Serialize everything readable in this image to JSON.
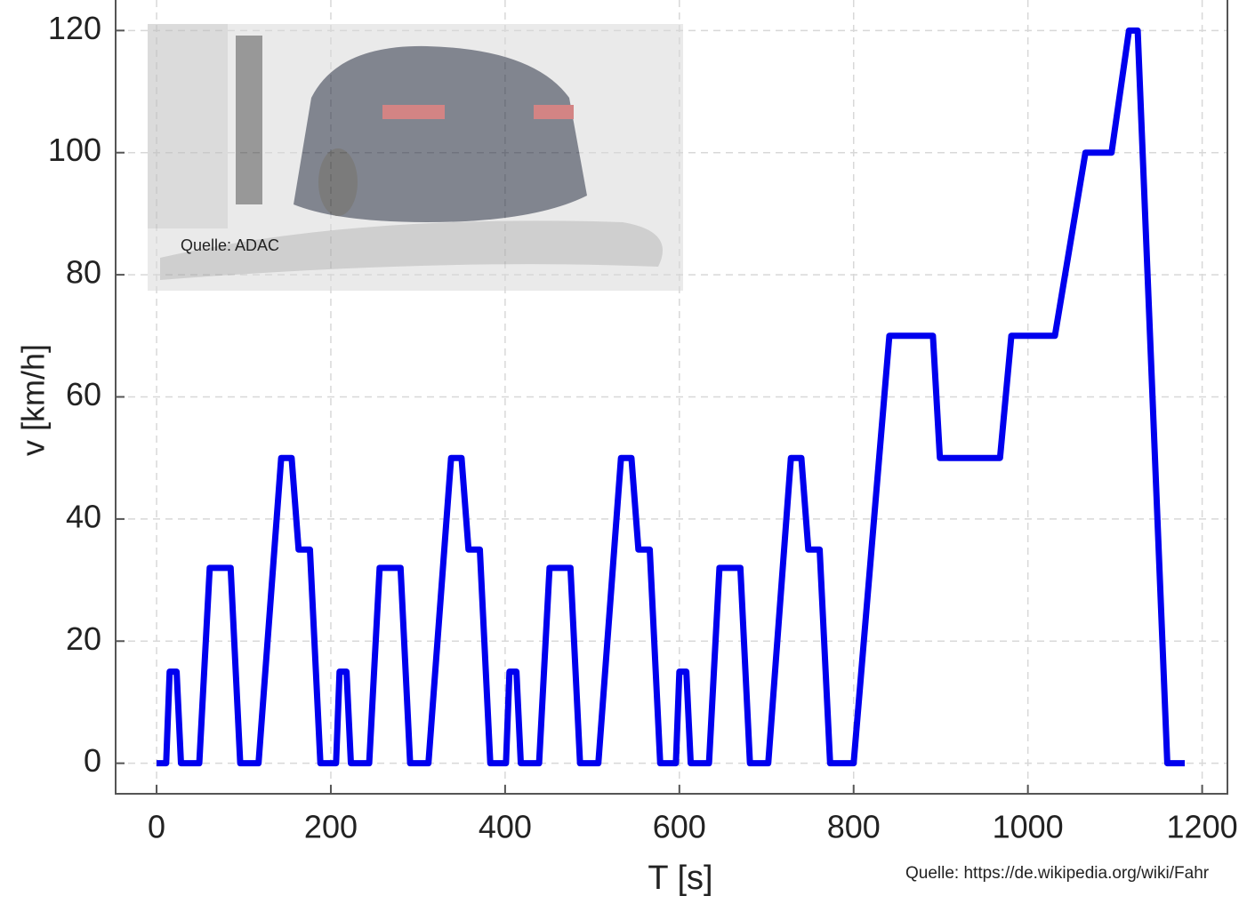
{
  "chart_data": {
    "type": "line",
    "x_label": "T [s]",
    "y_label": "v [km/h]",
    "x": [
      0,
      11,
      15,
      23,
      28,
      49,
      61,
      85,
      96,
      117,
      143,
      155,
      163,
      176,
      188,
      195,
      206,
      210,
      218,
      223,
      244,
      256,
      280,
      291,
      312,
      338,
      350,
      358,
      371,
      383,
      390,
      401,
      405,
      413,
      418,
      439,
      451,
      475,
      486,
      507,
      533,
      545,
      553,
      566,
      578,
      585,
      596,
      600,
      608,
      613,
      634,
      646,
      670,
      681,
      702,
      728,
      740,
      748,
      761,
      773,
      780,
      800,
      841,
      891,
      899,
      968,
      981,
      1031,
      1066,
      1096,
      1116,
      1126,
      1160,
      1180
    ],
    "series": [
      {
        "color": "#0000ee",
        "values": [
          0,
          0,
          15,
          15,
          0,
          0,
          32,
          32,
          0,
          0,
          50,
          50,
          35,
          35,
          0,
          0,
          0,
          15,
          15,
          0,
          0,
          32,
          32,
          0,
          0,
          50,
          50,
          35,
          35,
          0,
          0,
          0,
          15,
          15,
          0,
          0,
          32,
          32,
          0,
          0,
          50,
          50,
          35,
          35,
          0,
          0,
          0,
          15,
          15,
          0,
          0,
          32,
          32,
          0,
          0,
          50,
          50,
          35,
          35,
          0,
          0,
          0,
          70,
          70,
          50,
          50,
          70,
          70,
          100,
          100,
          120,
          120,
          0,
          0
        ]
      }
    ],
    "xlim": [
      -47,
      1229
    ],
    "ylim": [
      -5,
      125
    ],
    "xticks": [
      0,
      200,
      400,
      600,
      800,
      1000,
      1200
    ],
    "yticks": [
      0,
      20,
      40,
      60,
      80,
      100,
      120
    ],
    "grid": true,
    "annotations": [
      "Quelle: ADAC",
      "Quelle: https://de.wikipedia.org/wiki/Fahr"
    ]
  }
}
